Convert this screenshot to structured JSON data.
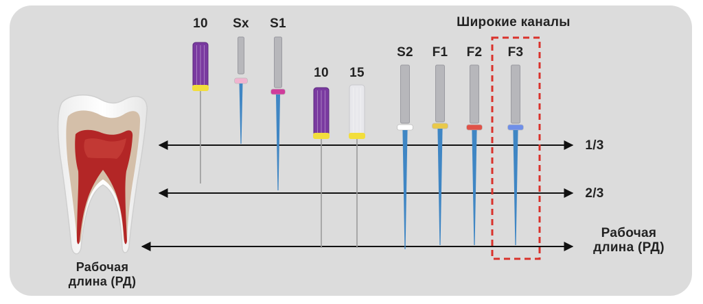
{
  "header": {
    "wide_canals": "Широкие каналы"
  },
  "instruments": [
    {
      "label": "10",
      "handle_color": "#7a3aa0",
      "ring_color": "#f2de3c"
    },
    {
      "label": "Sx",
      "handle_color": "#b7b7bb",
      "ring_color": "#f0b3cf"
    },
    {
      "label": "S1",
      "handle_color": "#b7b7bb",
      "ring_color": "#cf3c9b"
    },
    {
      "label": "10",
      "handle_color": "#7a3aa0",
      "ring_color": "#f2de3c"
    },
    {
      "label": "15",
      "handle_color": "#e8e8ec",
      "ring_color": "#f2de3c"
    },
    {
      "label": "S2",
      "handle_color": "#b7b7bb",
      "ring_color": "#ffffff"
    },
    {
      "label": "F1",
      "handle_color": "#b7b7bb",
      "ring_color": "#e9c94a"
    },
    {
      "label": "F2",
      "handle_color": "#b7b7bb",
      "ring_color": "#e05248"
    },
    {
      "label": "F3",
      "handle_color": "#b7b7bb",
      "ring_color": "#6f8fe8"
    }
  ],
  "levels": {
    "one_third": "1/3",
    "two_thirds": "2/3",
    "working_length_right": [
      "Рабочая",
      "длина (РД)"
    ]
  },
  "tooth": {
    "caption": [
      "Рабочая",
      "длина (РД)"
    ]
  },
  "colors": {
    "panel_bg": "#dcdcdc",
    "highlight_dash": "#d9322b",
    "pulp": "#b32626",
    "dentin": "#d4bfa9",
    "file_blue": "#3f86c4"
  }
}
